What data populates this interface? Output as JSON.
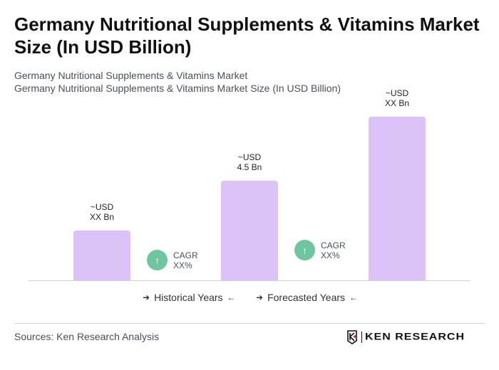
{
  "title": "Germany Nutritional Supplements & Vitamins Market Size (In USD Billion)",
  "subtitle1": "Germany Nutritional Supplements & Vitamins Market",
  "subtitle2": "Germany Nutritional Supplements & Vitamins Market Size (In USD Billion)",
  "chart_data": {
    "type": "bar",
    "title": "Germany Nutritional Supplements & Vitamins Market Size (In USD Billion)",
    "categories": [
      "",
      "",
      ""
    ],
    "values": [
      2.25,
      4.5,
      7.4
    ],
    "data_labels": [
      {
        "line1": "~USD",
        "line2": "XX Bn"
      },
      {
        "line1": "~USD",
        "line2": "4.5 Bn"
      },
      {
        "line1": "~USD",
        "line2": "XX Bn"
      }
    ],
    "cagr": [
      {
        "label": "CAGR",
        "value": "XX%"
      },
      {
        "label": "CAGR",
        "value": "XX%"
      }
    ],
    "legend": [
      "Historical Years",
      "Forecasted Years"
    ],
    "bar_color": "#dcc3f7",
    "cagr_color": "#6ec6a0",
    "grid": false
  },
  "sources": "Sources: Ken Research Analysis",
  "logo_text": "KEN RESEARCH"
}
